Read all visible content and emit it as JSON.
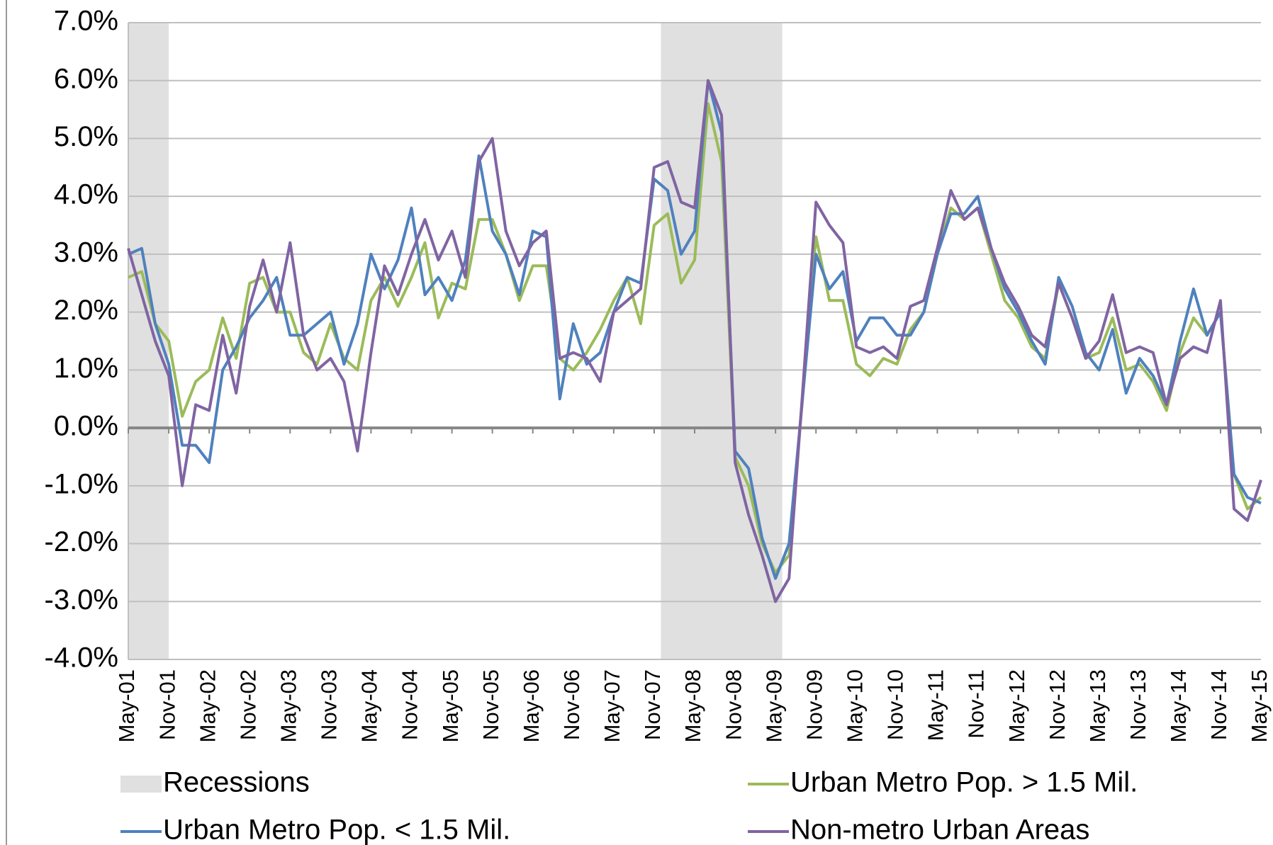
{
  "chart_data": {
    "type": "line",
    "categories": [
      "May-01",
      null,
      null,
      "Nov-01",
      null,
      null,
      "May-02",
      null,
      null,
      "Nov-02",
      null,
      null,
      "May-03",
      null,
      null,
      "Nov-03",
      null,
      null,
      "May-04",
      null,
      null,
      "Nov-04",
      null,
      null,
      "May-05",
      null,
      null,
      "Nov-05",
      null,
      null,
      "May-06",
      null,
      null,
      "Nov-06",
      null,
      null,
      "May-07",
      null,
      null,
      "Nov-07",
      null,
      null,
      "May-08",
      null,
      null,
      "Nov-08",
      null,
      null,
      "May-09",
      null,
      null,
      "Nov-09",
      null,
      null,
      "May-10",
      null,
      null,
      "Nov-10",
      null,
      null,
      "May-11",
      null,
      null,
      "Nov-11",
      null,
      null,
      "May-12",
      null,
      null,
      "Nov-12",
      null,
      null,
      "May-13",
      null,
      null,
      "Nov-13",
      null,
      null,
      "May-14",
      null,
      null,
      "Nov-14",
      null,
      null,
      "May-15"
    ],
    "recessions": {
      "name": "Recessions",
      "color": "#e0e0e0",
      "spans": [
        [
          0,
          3
        ],
        [
          39.5,
          48.5
        ]
      ]
    },
    "series": [
      {
        "name": "Urban Metro Pop. > 1.5 Mil.",
        "color": "#9bbb59",
        "values": [
          2.6,
          2.7,
          1.8,
          1.5,
          0.2,
          0.8,
          1.0,
          1.9,
          1.2,
          2.5,
          2.6,
          2.0,
          2.0,
          1.3,
          1.1,
          1.8,
          1.2,
          1.0,
          2.2,
          2.6,
          2.1,
          2.6,
          3.2,
          1.9,
          2.5,
          2.4,
          3.6,
          3.6,
          3.0,
          2.2,
          2.8,
          2.8,
          1.2,
          1.0,
          1.3,
          1.7,
          2.2,
          2.6,
          1.8,
          3.5,
          3.7,
          2.5,
          2.9,
          5.6,
          4.6,
          -0.5,
          -1.0,
          -2.0,
          -2.5,
          -2.2,
          0.5,
          3.3,
          2.2,
          2.2,
          1.1,
          0.9,
          1.2,
          1.1,
          1.7,
          2.0,
          3.0,
          3.8,
          3.6,
          3.8,
          3.0,
          2.2,
          1.9,
          1.4,
          1.2,
          2.5,
          1.9,
          1.2,
          1.3,
          1.9,
          1.0,
          1.1,
          0.8,
          0.3,
          1.3,
          1.9,
          1.6,
          2.0,
          -0.8,
          -1.4,
          -1.2
        ]
      },
      {
        "name": "Urban Metro Pop. < 1.5 Mil.",
        "color": "#4f81bd",
        "values": [
          3.0,
          3.1,
          1.8,
          1.1,
          -0.3,
          -0.3,
          -0.6,
          1.0,
          1.4,
          1.9,
          2.2,
          2.6,
          1.6,
          1.6,
          1.8,
          2.0,
          1.1,
          1.8,
          3.0,
          2.4,
          2.9,
          3.8,
          2.3,
          2.6,
          2.2,
          2.9,
          4.7,
          3.4,
          3.0,
          2.3,
          3.4,
          3.3,
          0.5,
          1.8,
          1.1,
          1.3,
          2.0,
          2.6,
          2.5,
          4.3,
          4.1,
          3.0,
          3.4,
          6.0,
          5.1,
          -0.4,
          -0.7,
          -1.9,
          -2.6,
          -2.0,
          0.5,
          3.0,
          2.4,
          2.7,
          1.5,
          1.9,
          1.9,
          1.6,
          1.6,
          2.0,
          3.0,
          3.7,
          3.7,
          4.0,
          3.1,
          2.4,
          2.0,
          1.5,
          1.1,
          2.6,
          2.1,
          1.3,
          1.0,
          1.7,
          0.6,
          1.2,
          0.9,
          0.4,
          1.5,
          2.4,
          1.6,
          2.0,
          -0.8,
          -1.2,
          -1.3
        ]
      },
      {
        "name": "Non-metro Urban Areas",
        "color": "#8064a2",
        "values": [
          3.1,
          2.3,
          1.5,
          0.9,
          -1.0,
          0.4,
          0.3,
          1.6,
          0.6,
          2.1,
          2.9,
          2.0,
          3.2,
          1.6,
          1.0,
          1.2,
          0.8,
          -0.4,
          1.3,
          2.8,
          2.3,
          3.0,
          3.6,
          2.9,
          3.4,
          2.6,
          4.6,
          5.0,
          3.4,
          2.8,
          3.2,
          3.4,
          1.2,
          1.3,
          1.2,
          0.8,
          2.0,
          2.2,
          2.4,
          4.5,
          4.6,
          3.9,
          3.8,
          6.0,
          5.4,
          -0.6,
          -1.5,
          -2.2,
          -3.0,
          -2.6,
          0.6,
          3.9,
          3.5,
          3.2,
          1.4,
          1.3,
          1.4,
          1.2,
          2.1,
          2.2,
          3.1,
          4.1,
          3.6,
          3.8,
          3.1,
          2.5,
          2.1,
          1.6,
          1.4,
          2.5,
          1.9,
          1.2,
          1.5,
          2.3,
          1.3,
          1.4,
          1.3,
          0.4,
          1.2,
          1.4,
          1.3,
          2.2,
          -1.4,
          -1.6,
          -0.9
        ]
      }
    ],
    "ylim": [
      -4,
      7
    ],
    "yticks": [
      {
        "value": -4,
        "label": "-4.0%"
      },
      {
        "value": -3,
        "label": "-3.0%"
      },
      {
        "value": -2,
        "label": "-2.0%"
      },
      {
        "value": -1,
        "label": "-1.0%"
      },
      {
        "value": 0,
        "label": "0.0%"
      },
      {
        "value": 1,
        "label": "1.0%"
      },
      {
        "value": 2,
        "label": "2.0%"
      },
      {
        "value": 3,
        "label": "3.0%"
      },
      {
        "value": 4,
        "label": "4.0%"
      },
      {
        "value": 5,
        "label": "5.0%"
      },
      {
        "value": 6,
        "label": "6.0%"
      },
      {
        "value": 7,
        "label": "7.0%"
      }
    ],
    "grid": true,
    "legend": "bottom"
  }
}
